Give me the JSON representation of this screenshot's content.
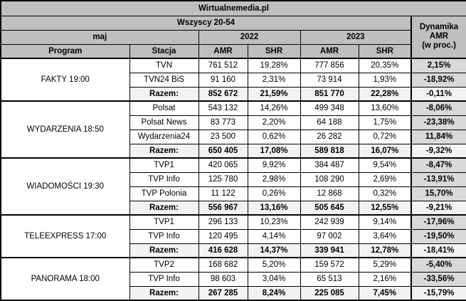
{
  "title": "Wirtualnemedia.pl",
  "header": {
    "audience": "Wszyscy 20-54",
    "month": "maj",
    "year_2022": "2022",
    "year_2023": "2023",
    "col_program": "Program",
    "col_station": "Stacja",
    "col_amr_2022": "AMR",
    "col_shr_2022": "SHR",
    "col_amr_2023": "AMR",
    "col_shr_2023": "SHR",
    "dynamics_header": {
      "line1": "Dynamika",
      "line2": "AMR",
      "line3": "(w proc.)"
    }
  },
  "colors": {
    "header_bg": "#bfbfbf",
    "total_row_bg": "#f2f2f2",
    "dynamics_col_bg": "#d9d9d9",
    "border": "#000000",
    "text": "#000000",
    "page_bg": "#ffffff"
  },
  "groups": [
    {
      "program": "FAKTY 19:00",
      "rows": [
        {
          "station": "TVN",
          "amr_2022": "761 512",
          "shr_2022": "19,28%",
          "amr_2023": "777 856",
          "shr_2023": "20,35%",
          "dynamics": "2,15%",
          "total": false
        },
        {
          "station": "TVN24 BiS",
          "amr_2022": "91 160",
          "shr_2022": "2,31%",
          "amr_2023": "73 914",
          "shr_2023": "1,93%",
          "dynamics": "-18,92%",
          "total": false
        },
        {
          "station": "Razem:",
          "amr_2022": "852 672",
          "shr_2022": "21,59%",
          "amr_2023": "851 770",
          "shr_2023": "22,28%",
          "dynamics": "-0,11%",
          "total": true
        }
      ]
    },
    {
      "program": "WYDARZENIA 18:50",
      "rows": [
        {
          "station": "Polsat",
          "amr_2022": "543 132",
          "shr_2022": "14,26%",
          "amr_2023": "499 348",
          "shr_2023": "13,60%",
          "dynamics": "-8,06%",
          "total": false
        },
        {
          "station": "Polsat News",
          "amr_2022": "83 773",
          "shr_2022": "2,20%",
          "amr_2023": "64 188",
          "shr_2023": "1,75%",
          "dynamics": "-23,38%",
          "total": false
        },
        {
          "station": "Wydarzenia24",
          "amr_2022": "23 500",
          "shr_2022": "0,62%",
          "amr_2023": "26 282",
          "shr_2023": "0,72%",
          "dynamics": "11,84%",
          "total": false
        },
        {
          "station": "Razem:",
          "amr_2022": "650 405",
          "shr_2022": "17,08%",
          "amr_2023": "589 818",
          "shr_2023": "16,07%",
          "dynamics": "-9,32%",
          "total": true
        }
      ]
    },
    {
      "program": "WIADOMOŚCI 19:30",
      "rows": [
        {
          "station": "TVP1",
          "amr_2022": "420 065",
          "shr_2022": "9,92%",
          "amr_2023": "384 487",
          "shr_2023": "9,54%",
          "dynamics": "-8,47%",
          "total": false
        },
        {
          "station": "TVP Info",
          "amr_2022": "125 780",
          "shr_2022": "2,98%",
          "amr_2023": "108 290",
          "shr_2023": "2,69%",
          "dynamics": "-13,91%",
          "total": false
        },
        {
          "station": "TVP Polonia",
          "amr_2022": "11 122",
          "shr_2022": "0,26%",
          "amr_2023": "12 868",
          "shr_2023": "0,32%",
          "dynamics": "15,70%",
          "total": false
        },
        {
          "station": "Razem:",
          "amr_2022": "556 967",
          "shr_2022": "13,16%",
          "amr_2023": "505 645",
          "shr_2023": "12,55%",
          "dynamics": "-9,21%",
          "total": true
        }
      ]
    },
    {
      "program": "TELEEXPRESS 17:00",
      "rows": [
        {
          "station": "TVP1",
          "amr_2022": "296 133",
          "shr_2022": "10,23%",
          "amr_2023": "242 939",
          "shr_2023": "9,14%",
          "dynamics": "-17,96%",
          "total": false
        },
        {
          "station": "TVP Info",
          "amr_2022": "120 495",
          "shr_2022": "4,14%",
          "amr_2023": "97 002",
          "shr_2023": "3,64%",
          "dynamics": "-19,50%",
          "total": false
        },
        {
          "station": "Razem:",
          "amr_2022": "416 628",
          "shr_2022": "14,37%",
          "amr_2023": "339 941",
          "shr_2023": "12,78%",
          "dynamics": "-18,41%",
          "total": true
        }
      ]
    },
    {
      "program": "PANORAMA 18:00",
      "rows": [
        {
          "station": "TVP2",
          "amr_2022": "168 682",
          "shr_2022": "5,20%",
          "amr_2023": "159 572",
          "shr_2023": "5,29%",
          "dynamics": "-5,40%",
          "total": false
        },
        {
          "station": "TVP Info",
          "amr_2022": "98 603",
          "shr_2022": "3,04%",
          "amr_2023": "65 513",
          "shr_2023": "2,16%",
          "dynamics": "-33,56%",
          "total": false
        },
        {
          "station": "Razem:",
          "amr_2022": "267 285",
          "shr_2022": "8,24%",
          "amr_2023": "225 085",
          "shr_2023": "7,45%",
          "dynamics": "-15,79%",
          "total": true
        }
      ]
    }
  ]
}
